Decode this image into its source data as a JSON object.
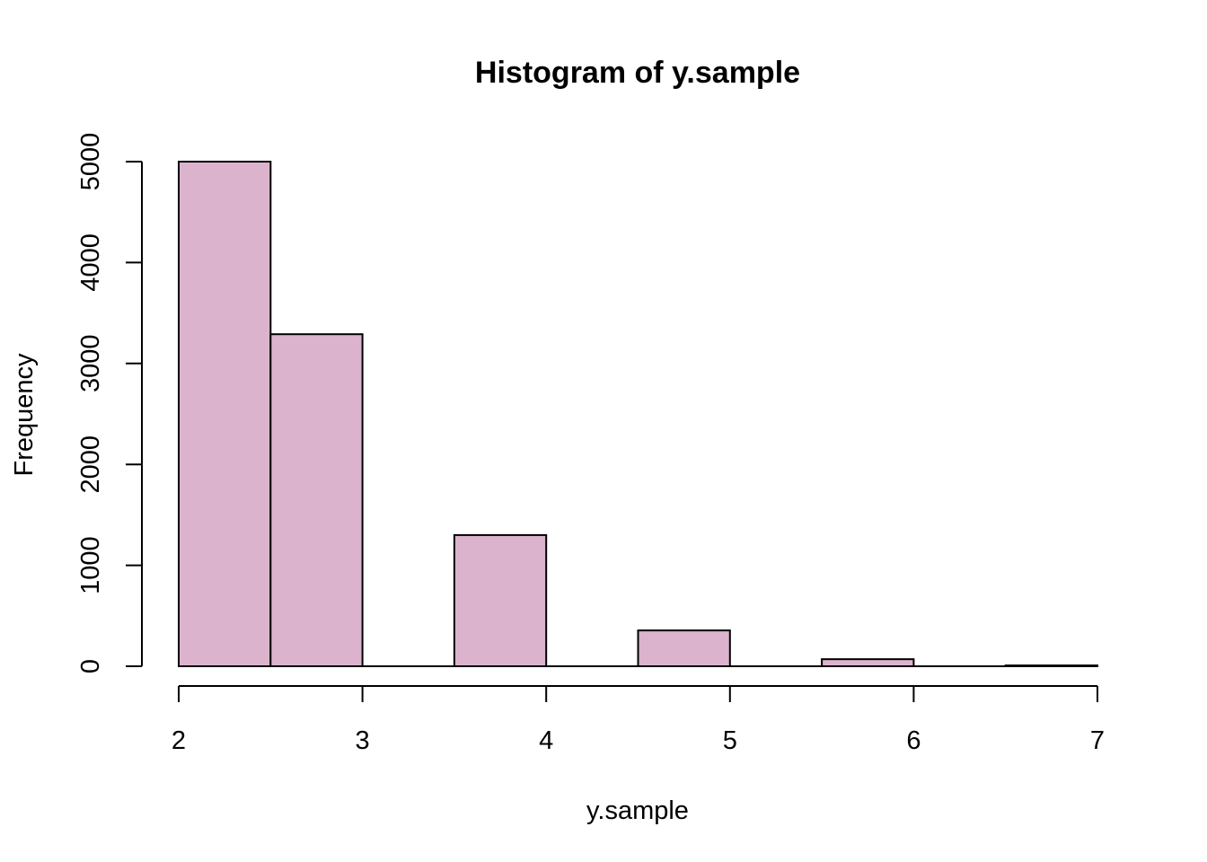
{
  "chart_data": {
    "type": "bar",
    "title": "Histogram of y.sample",
    "xlabel": "y.sample",
    "ylabel": "Frequency",
    "bin_width": 0.5,
    "bins": [
      {
        "start": 2.0,
        "end": 2.5,
        "count": 5000
      },
      {
        "start": 2.5,
        "end": 3.0,
        "count": 3290
      },
      {
        "start": 3.0,
        "end": 3.5,
        "count": 0
      },
      {
        "start": 3.5,
        "end": 4.0,
        "count": 1300
      },
      {
        "start": 4.0,
        "end": 4.5,
        "count": 0
      },
      {
        "start": 4.5,
        "end": 5.0,
        "count": 355
      },
      {
        "start": 5.0,
        "end": 5.5,
        "count": 0
      },
      {
        "start": 5.5,
        "end": 6.0,
        "count": 70
      },
      {
        "start": 6.0,
        "end": 6.5,
        "count": 0
      },
      {
        "start": 6.5,
        "end": 7.0,
        "count": 8
      }
    ],
    "xlim": [
      2,
      7
    ],
    "ylim": [
      0,
      5000
    ],
    "x_ticks": [
      2,
      3,
      4,
      5,
      6,
      7
    ],
    "x_tick_labels": [
      "2",
      "3",
      "4",
      "5",
      "6",
      "7"
    ],
    "y_ticks": [
      0,
      1000,
      2000,
      3000,
      4000,
      5000
    ],
    "y_tick_labels": [
      "0",
      "1000",
      "2000",
      "3000",
      "4000",
      "5000"
    ],
    "bar_color": "#dbb3cd",
    "grid": false,
    "legend": "none"
  }
}
